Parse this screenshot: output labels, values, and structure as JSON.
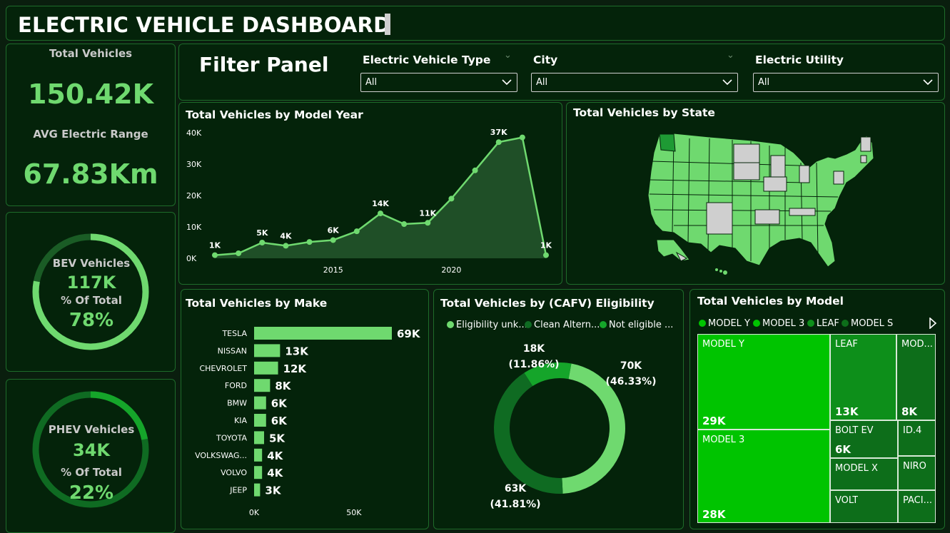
{
  "title": "ELECTRIC VEHICLE DASHBOARD",
  "kpis": {
    "total_vehicles_label": "Total Vehicles",
    "total_vehicles_value": "150.42K",
    "avg_range_label": "AVG Electric Range",
    "avg_range_value": "67.83Km"
  },
  "bev": {
    "label": "BEV Vehicles",
    "value": "117K",
    "pct_label": "% Of Total",
    "pct_value": "78%",
    "fraction": 0.78
  },
  "phev": {
    "label": "PHEV Vehicles",
    "value": "34K",
    "pct_label": "% Of Total",
    "pct_value": "22%",
    "fraction": 0.22
  },
  "filters": {
    "title": "Filter Panel",
    "ev_type_label": "Electric Vehicle Type",
    "ev_type_value": "All",
    "city_label": "City",
    "city_value": "All",
    "utility_label": "Electric Utility",
    "utility_value": "All"
  },
  "model_year_chart": {
    "title": "Total Vehicles by Model Year",
    "chart_data": {
      "type": "area",
      "x": [
        2010,
        2011,
        2012,
        2013,
        2014,
        2015,
        2016,
        2017,
        2018,
        2019,
        2020,
        2021,
        2022,
        2023,
        2024
      ],
      "values": [
        1000,
        1600,
        5000,
        4000,
        5200,
        5800,
        8600,
        14300,
        10900,
        11300,
        19000,
        28000,
        37000,
        38500,
        1000
      ],
      "yticks": [
        "0K",
        "10K",
        "20K",
        "30K",
        "40K"
      ],
      "xticks": [
        "2015",
        "2020"
      ],
      "ylim": [
        0,
        40000
      ],
      "data_labels": [
        {
          "i": 0,
          "text": "1K"
        },
        {
          "i": 2,
          "text": "5K"
        },
        {
          "i": 3,
          "text": "4K"
        },
        {
          "i": 5,
          "text": "6K"
        },
        {
          "i": 7,
          "text": "14K"
        },
        {
          "i": 9,
          "text": "11K"
        },
        {
          "i": 12,
          "text": "37K"
        },
        {
          "i": 14,
          "text": "1K"
        }
      ]
    }
  },
  "state_map": {
    "title": "Total Vehicles by State"
  },
  "make_chart": {
    "title": "Total Vehicles by Make",
    "chart_data": {
      "type": "bar",
      "categories": [
        "TESLA",
        "NISSAN",
        "CHEVROLET",
        "FORD",
        "BMW",
        "KIA",
        "TOYOTA",
        "VOLKSWAG...",
        "VOLVO",
        "JEEP"
      ],
      "values": [
        69000,
        13000,
        12000,
        8000,
        6000,
        6000,
        5000,
        4000,
        4000,
        3000
      ],
      "labels": [
        "69K",
        "13K",
        "12K",
        "8K",
        "6K",
        "6K",
        "5K",
        "4K",
        "4K",
        "3K"
      ],
      "xticks": [
        "0K",
        "50K"
      ],
      "xlim": [
        0,
        69000
      ]
    }
  },
  "cafv_chart": {
    "title": "Total Vehicles by (CAFV) Eligibility",
    "legend": [
      "Eligibility unk...",
      "Clean Altern...",
      "Not eligible ..."
    ],
    "chart_data": {
      "type": "pie",
      "categories": [
        "Eligibility unknown",
        "Clean Alternative",
        "Not eligible"
      ],
      "values": [
        70000,
        63000,
        18000
      ],
      "percents": [
        46.33,
        41.81,
        11.86
      ],
      "labels": [
        {
          "value": "70K",
          "pct": "(46.33%)"
        },
        {
          "value": "63K",
          "pct": "(41.81%)"
        },
        {
          "value": "18K",
          "pct": "(11.86%)"
        }
      ]
    }
  },
  "model_treemap": {
    "title": "Total Vehicles by Model",
    "legend": [
      "MODEL Y",
      "MODEL 3",
      "LEAF",
      "MODEL S"
    ],
    "tiles": [
      {
        "label": "MODEL Y",
        "value": "29K"
      },
      {
        "label": "MODEL 3",
        "value": "28K"
      },
      {
        "label": "LEAF",
        "value": "13K"
      },
      {
        "label": "MOD...",
        "value": "8K"
      },
      {
        "label": "BOLT EV",
        "value": "6K"
      },
      {
        "label": "ID.4",
        "value": ""
      },
      {
        "label": "MODEL X",
        "value": ""
      },
      {
        "label": "NIRO",
        "value": ""
      },
      {
        "label": "VOLT",
        "value": ""
      },
      {
        "label": "PACI...",
        "value": ""
      }
    ]
  },
  "colors": {
    "background": "#0a1e0e",
    "panel": "#04230a",
    "border": "#1e6b2a",
    "accent_light": "#6fd96f",
    "accent_dark": "#0f6b22",
    "treemap_bright": "#00c400",
    "treemap_mid": "#0d8f1a",
    "map_gray": "#cfcfcf"
  }
}
